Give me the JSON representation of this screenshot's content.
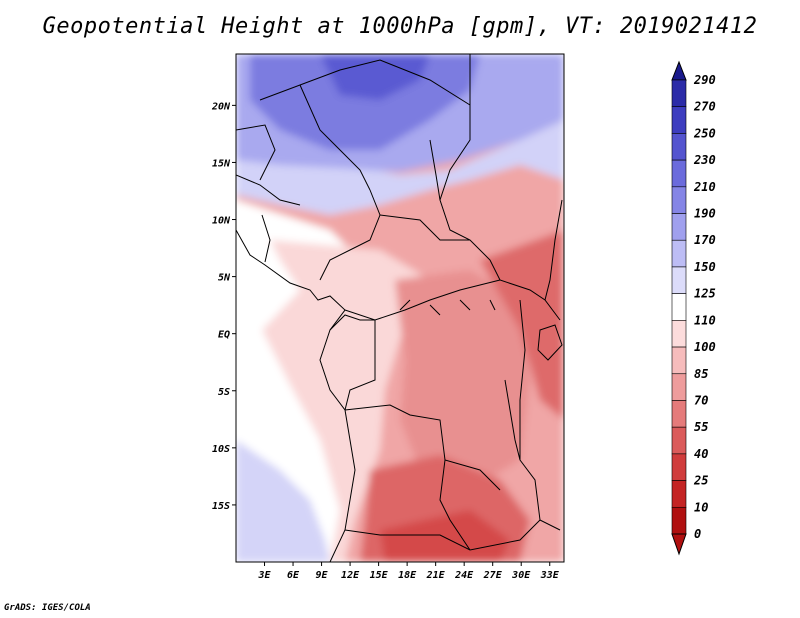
{
  "title": "Geopotential Height at 1000hPa [gpm], VT: 2019021412",
  "credit": "GrADS: IGES/COLA",
  "map": {
    "lon_range": [
      0,
      34.5
    ],
    "lat_range": [
      -20,
      24.5
    ],
    "lon_ticks": [
      {
        "value": 3,
        "label": "3E"
      },
      {
        "value": 6,
        "label": "6E"
      },
      {
        "value": 9,
        "label": "9E"
      },
      {
        "value": 12,
        "label": "12E"
      },
      {
        "value": 15,
        "label": "15E"
      },
      {
        "value": 18,
        "label": "18E"
      },
      {
        "value": 21,
        "label": "21E"
      },
      {
        "value": 24,
        "label": "24E"
      },
      {
        "value": 27,
        "label": "27E"
      },
      {
        "value": 30,
        "label": "30E"
      },
      {
        "value": 33,
        "label": "33E"
      }
    ],
    "lat_ticks": [
      {
        "value": 20,
        "label": "20N"
      },
      {
        "value": 15,
        "label": "15N"
      },
      {
        "value": 10,
        "label": "10N"
      },
      {
        "value": 5,
        "label": "5N"
      },
      {
        "value": 0,
        "label": "EQ"
      },
      {
        "value": -5,
        "label": "5S"
      },
      {
        "value": -10,
        "label": "10S"
      },
      {
        "value": -15,
        "label": "15S"
      }
    ]
  },
  "colorbar": {
    "levels": [
      "290",
      "270",
      "250",
      "230",
      "210",
      "190",
      "170",
      "150",
      "125",
      "110",
      "100",
      "85",
      "70",
      "55",
      "40",
      "25",
      "10",
      "0"
    ],
    "colors": [
      "#1a1a8c",
      "#2b2ba8",
      "#3d3dbf",
      "#5454cf",
      "#6b6bdc",
      "#8585e6",
      "#a0a0ee",
      "#bdbdf5",
      "#dcdcfa",
      "#ffffff",
      "#fcdcdc",
      "#f6bcbc",
      "#ee9c9c",
      "#e57b7b",
      "#db5b5b",
      "#d03c3c",
      "#c42424",
      "#b01010"
    ]
  },
  "regions": [
    {
      "name": "north-blue-high",
      "color": "#7b7be0"
    },
    {
      "name": "sahel-blue",
      "color": "#a9a9ef"
    },
    {
      "name": "light-blue-band",
      "color": "#d2d2f8"
    },
    {
      "name": "ocean-white",
      "color": "#ffffff"
    },
    {
      "name": "coastal-light-red",
      "color": "#fad8d8"
    },
    {
      "name": "central-red",
      "color": "#f0a6a6"
    },
    {
      "name": "congo-basin-red",
      "color": "#e89090"
    },
    {
      "name": "south-deep-red",
      "color": "#dd6666"
    },
    {
      "name": "east-deep-red",
      "color": "#de6a6a"
    },
    {
      "name": "southwest-blue",
      "color": "#d4d4f8"
    }
  ]
}
